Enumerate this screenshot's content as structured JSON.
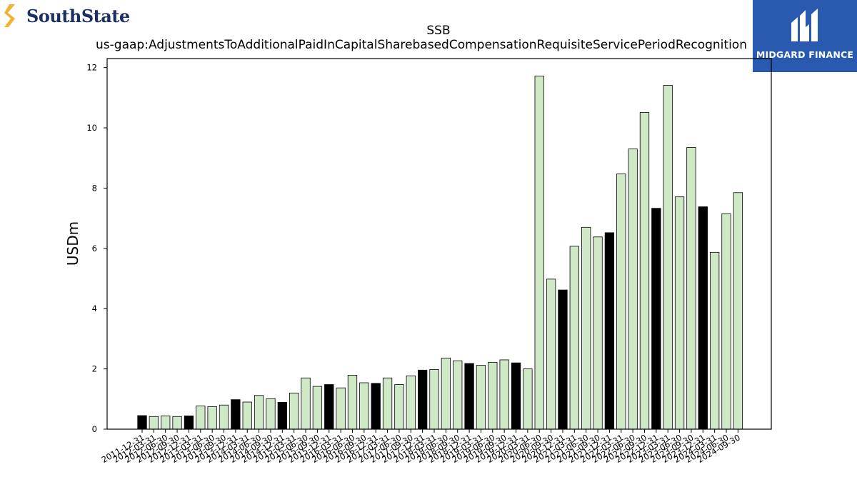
{
  "brand": {
    "left_logo_text": "SouthState",
    "right_logo_text": "MIDGARD FINANCE",
    "right_bg_color": "#2a59b0"
  },
  "colors": {
    "bar_light": "#cfe8c6",
    "bar_dark": "#000000",
    "edge": "#000000"
  },
  "chart_data": {
    "type": "bar",
    "title": "SSB",
    "subtitle": "us-gaap:AdjustmentsToAdditionalPaidInCapitalSharebasedCompensationRequisiteServicePeriodRecognition",
    "xlabel": "",
    "ylabel": "USDm",
    "ylim": [
      0,
      12.3
    ],
    "yticks": [
      0,
      2,
      4,
      6,
      8,
      10,
      12
    ],
    "grid": false,
    "categories": [
      "2011-12-31",
      "2012-03-31",
      "2012-06-30",
      "2012-09-30",
      "2012-12-31",
      "2013-03-31",
      "2013-06-30",
      "2013-09-30",
      "2013-12-31",
      "2014-03-31",
      "2014-06-30",
      "2014-09-30",
      "2014-12-31",
      "2015-03-31",
      "2015-06-30",
      "2015-09-30",
      "2015-12-31",
      "2016-03-31",
      "2016-06-30",
      "2016-09-30",
      "2016-12-31",
      "2017-03-31",
      "2017-06-30",
      "2017-09-30",
      "2017-12-31",
      "2018-03-31",
      "2018-06-30",
      "2018-09-30",
      "2018-12-31",
      "2019-03-31",
      "2019-06-30",
      "2019-09-30",
      "2019-12-31",
      "2020-03-31",
      "2020-06-30",
      "2020-09-30",
      "2020-12-31",
      "2021-03-31",
      "2021-06-30",
      "2021-09-30",
      "2021-12-31",
      "2022-03-31",
      "2022-06-30",
      "2022-09-30",
      "2022-12-31",
      "2023-03-31",
      "2023-06-30",
      "2023-09-30",
      "2023-12-31",
      "2024-03-31",
      "2024-06-30",
      "2024-09-30"
    ],
    "values": [
      0.45,
      0.42,
      0.44,
      0.42,
      0.44,
      0.77,
      0.75,
      0.8,
      0.98,
      0.9,
      1.12,
      1.01,
      0.89,
      1.2,
      1.7,
      1.42,
      1.48,
      1.37,
      1.79,
      1.54,
      1.52,
      1.7,
      1.48,
      1.77,
      1.96,
      1.98,
      2.36,
      2.27,
      2.18,
      2.12,
      2.22,
      2.3,
      2.2,
      2.0,
      11.72,
      4.98,
      4.62,
      6.07,
      6.7,
      6.38,
      6.52,
      8.47,
      9.3,
      10.51,
      7.33,
      11.41,
      7.71,
      9.35,
      7.38,
      5.87,
      7.15,
      7.85
    ],
    "dark_bar_indices": [
      0,
      4,
      8,
      12,
      16,
      20,
      24,
      28,
      32,
      36,
      40,
      44,
      48
    ]
  }
}
